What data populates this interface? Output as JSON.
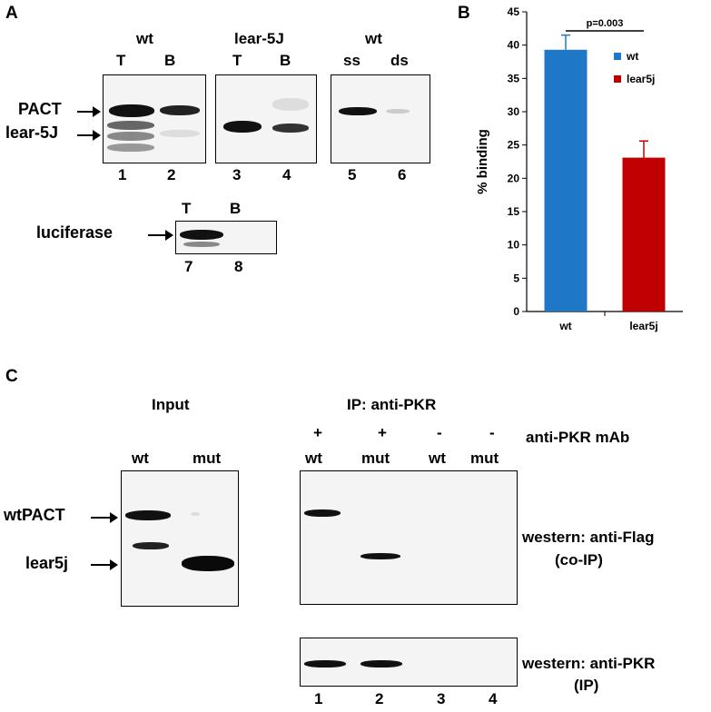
{
  "panel_a": {
    "letter": "A",
    "gel1": {
      "header": "wt",
      "lanes": [
        "T",
        "B"
      ],
      "numbers": [
        "1",
        "2"
      ]
    },
    "gel2": {
      "header": "lear-5J",
      "lanes": [
        "T",
        "B"
      ],
      "numbers": [
        "3",
        "4"
      ]
    },
    "gel3": {
      "header": "wt",
      "lanes": [
        "ss",
        "ds"
      ],
      "numbers": [
        "5",
        "6"
      ]
    },
    "gel4": {
      "lanes": [
        "T",
        "B"
      ],
      "numbers": [
        "7",
        "8"
      ]
    },
    "markers": {
      "pact": "PACT",
      "lear": "lear-5J",
      "luciferase": "luciferase"
    }
  },
  "panel_b": {
    "letter": "B"
  },
  "chart_data": {
    "type": "bar",
    "categories": [
      "wt",
      "lear5j"
    ],
    "values": [
      39.3,
      23.1
    ],
    "errors": [
      2.2,
      2.5
    ],
    "colors": [
      "#1f77c8",
      "#c00000"
    ],
    "ylabel": "% binding",
    "xlabel": "",
    "ylim": [
      0,
      45
    ],
    "yticks": [
      0,
      5,
      10,
      15,
      20,
      25,
      30,
      35,
      40,
      45
    ],
    "legend": [
      {
        "name": "wt",
        "color": "#1f77c8"
      },
      {
        "name": "lear5j",
        "color": "#c00000"
      }
    ],
    "legend_position": "upper-right",
    "annotation": "p=0.003",
    "grid": false
  },
  "panel_c": {
    "letter": "C",
    "input_title": "Input",
    "ip_title": "IP: anti-PKR",
    "input_lanes": [
      "wt",
      "mut"
    ],
    "mab_signs": [
      "+",
      "+",
      "-",
      "-"
    ],
    "mab_label": "anti-PKR mAb",
    "ip_lanes": [
      "wt",
      "mut",
      "wt",
      "mut"
    ],
    "markers": {
      "wtpact": "wtPACT",
      "lear5j": "lear5j"
    },
    "western1_line1": "western: anti-Flag",
    "western1_line2": "(co-IP)",
    "western2_line1": "western: anti-PKR",
    "western2_line2": "(IP)",
    "lane_numbers": [
      "1",
      "2",
      "3",
      "4"
    ]
  }
}
